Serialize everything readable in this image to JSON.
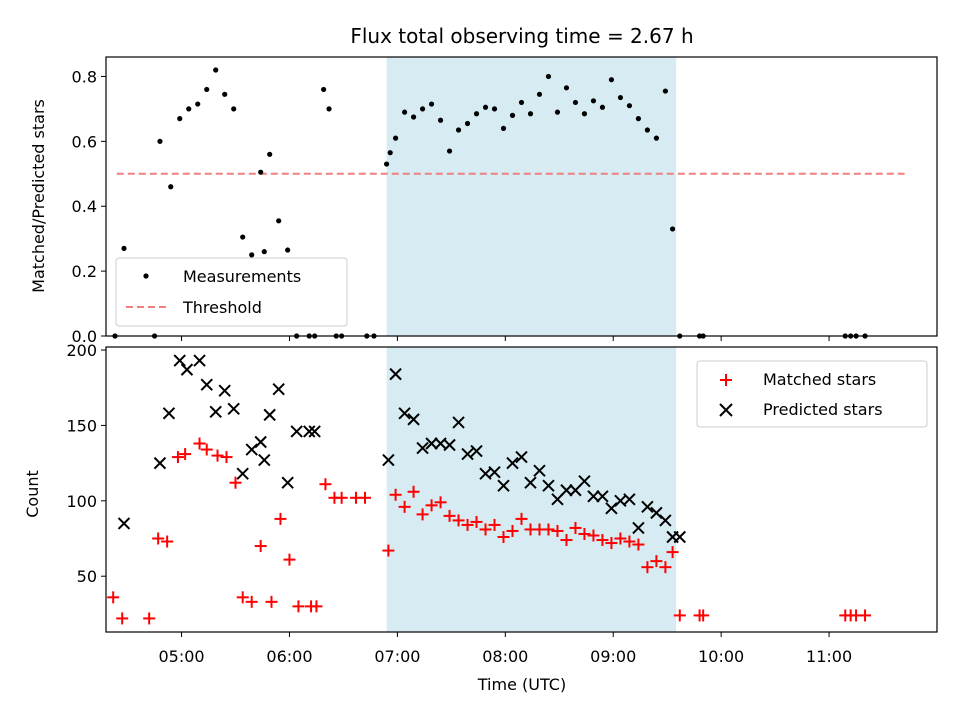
{
  "chart_data": [
    {
      "type": "scatter",
      "title": "Flux total observing time = 2.67 h",
      "xlabel": "",
      "ylabel": "Matched/Predicted stars",
      "xlim": [
        "04:18",
        "12:00"
      ],
      "ylim": [
        0,
        0.86
      ],
      "yticks": [
        "0.0",
        "0.2",
        "0.4",
        "0.6",
        "0.8"
      ],
      "ytick_values": [
        0,
        0.2,
        0.4,
        0.6,
        0.8
      ],
      "grid": false,
      "legend_position": "lower-left",
      "highlight_span": {
        "start": "06:54",
        "end": "09:35",
        "color": "#add8e6"
      },
      "threshold": {
        "name": "Threshold",
        "value": 0.5,
        "x_start": "04:24",
        "x_end": "11:42",
        "color": "#f08080"
      },
      "series": [
        {
          "name": "Measurements",
          "color": "#000000",
          "x": [
            "04:23",
            "04:28",
            "04:45",
            "04:48",
            "04:54",
            "04:59",
            "05:04",
            "05:09",
            "05:14",
            "05:19",
            "05:24",
            "05:29",
            "05:34",
            "05:39",
            "05:44",
            "05:46",
            "05:49",
            "05:54",
            "05:59",
            "06:04",
            "06:11",
            "06:14",
            "06:19",
            "06:22",
            "06:26",
            "06:29",
            "06:43",
            "06:47",
            "06:54",
            "06:56",
            "06:59",
            "07:04",
            "07:09",
            "07:14",
            "07:19",
            "07:24",
            "07:29",
            "07:34",
            "07:39",
            "07:44",
            "07:49",
            "07:54",
            "07:59",
            "08:04",
            "08:09",
            "08:14",
            "08:19",
            "08:24",
            "08:29",
            "08:34",
            "08:39",
            "08:44",
            "08:49",
            "08:54",
            "08:59",
            "09:04",
            "09:09",
            "09:14",
            "09:19",
            "09:24",
            "09:29",
            "09:33",
            "09:37",
            "09:48",
            "09:50",
            "11:09",
            "11:12",
            "11:15",
            "11:20"
          ],
          "y": [
            0,
            0.27,
            0,
            0.6,
            0.46,
            0.67,
            0.7,
            0.715,
            0.76,
            0.82,
            0.745,
            0.7,
            0.305,
            0.25,
            0.505,
            0.26,
            0.56,
            0.355,
            0.265,
            0,
            0,
            0,
            0.76,
            0.7,
            0,
            0,
            0,
            0,
            0.53,
            0.565,
            0.61,
            0.69,
            0.675,
            0.7,
            0.715,
            0.665,
            0.57,
            0.635,
            0.655,
            0.685,
            0.705,
            0.7,
            0.64,
            0.68,
            0.72,
            0.685,
            0.745,
            0.8,
            0.69,
            0.765,
            0.72,
            0.685,
            0.725,
            0.705,
            0.79,
            0.735,
            0.71,
            0.67,
            0.635,
            0.61,
            0.755,
            0.33,
            0,
            0,
            0,
            0,
            0,
            0,
            0
          ]
        }
      ]
    },
    {
      "type": "scatter",
      "title": "",
      "xlabel": "Time (UTC)",
      "ylabel": "Count",
      "xlim": [
        "04:18",
        "12:00"
      ],
      "ylim": [
        13,
        202
      ],
      "yticks": [
        "50",
        "100",
        "150",
        "200"
      ],
      "ytick_values": [
        50,
        100,
        150,
        200
      ],
      "xticks": [
        "05:00",
        "06:00",
        "07:00",
        "08:00",
        "09:00",
        "10:00",
        "11:00"
      ],
      "grid": false,
      "legend_position": "upper-right",
      "highlight_span": {
        "start": "06:54",
        "end": "09:35",
        "color": "#add8e6"
      },
      "series": [
        {
          "name": "Matched stars",
          "color": "#ff0000",
          "marker": "+",
          "x": [
            "04:22",
            "04:27",
            "04:42",
            "04:47",
            "04:52",
            "04:58",
            "05:02",
            "05:10",
            "05:14",
            "05:20",
            "05:25",
            "05:30",
            "05:34",
            "05:39",
            "05:44",
            "05:50",
            "05:55",
            "06:00",
            "06:05",
            "06:12",
            "06:15",
            "06:20",
            "06:25",
            "06:29",
            "06:37",
            "06:42",
            "06:55",
            "06:59",
            "07:04",
            "07:09",
            "07:14",
            "07:19",
            "07:24",
            "07:29",
            "07:34",
            "07:39",
            "07:44",
            "07:49",
            "07:54",
            "07:59",
            "08:04",
            "08:09",
            "08:14",
            "08:19",
            "08:24",
            "08:29",
            "08:34",
            "08:39",
            "08:44",
            "08:49",
            "08:54",
            "08:59",
            "09:04",
            "09:09",
            "09:14",
            "09:19",
            "09:24",
            "09:29",
            "09:33",
            "09:37",
            "09:48",
            "09:50",
            "11:09",
            "11:12",
            "11:15",
            "11:20"
          ],
          "y": [
            36,
            22,
            22,
            75,
            73,
            129,
            131,
            138,
            134,
            130,
            129,
            112,
            36,
            33,
            70,
            33,
            88,
            61,
            30,
            30,
            30,
            111,
            102,
            102,
            102,
            102,
            67,
            104,
            96,
            106,
            91,
            97,
            99,
            90,
            87,
            84,
            86,
            81,
            84,
            76,
            80,
            88,
            81,
            81,
            81,
            80,
            74,
            82,
            78,
            77,
            74,
            72,
            75,
            73,
            71,
            56,
            60,
            56,
            66,
            24,
            24,
            24,
            24,
            24,
            24,
            24
          ]
        },
        {
          "name": "Predicted stars",
          "color": "#000000",
          "marker": "x",
          "x": [
            "04:28",
            "04:48",
            "04:53",
            "04:59",
            "05:03",
            "05:10",
            "05:14",
            "05:19",
            "05:24",
            "05:29",
            "05:34",
            "05:39",
            "05:44",
            "05:46",
            "05:49",
            "05:54",
            "05:59",
            "06:04",
            "06:11",
            "06:14",
            "06:55",
            "06:59",
            "07:04",
            "07:09",
            "07:14",
            "07:19",
            "07:24",
            "07:29",
            "07:34",
            "07:39",
            "07:44",
            "07:49",
            "07:54",
            "07:59",
            "08:04",
            "08:09",
            "08:14",
            "08:19",
            "08:24",
            "08:29",
            "08:34",
            "08:39",
            "08:44",
            "08:49",
            "08:54",
            "08:59",
            "09:04",
            "09:09",
            "09:14",
            "09:19",
            "09:24",
            "09:29",
            "09:33",
            "09:37"
          ],
          "y": [
            85,
            125,
            158,
            193,
            187,
            193,
            177,
            159,
            173,
            161,
            118,
            134,
            139,
            127,
            157,
            174,
            112,
            146,
            146,
            146,
            127,
            184,
            158,
            154,
            135,
            138,
            138,
            137,
            152,
            131,
            133,
            118,
            119,
            110,
            125,
            129,
            112,
            120,
            110,
            101,
            107,
            107,
            113,
            103,
            103,
            95,
            100,
            101,
            82,
            96,
            92,
            87,
            76,
            76
          ]
        }
      ]
    }
  ]
}
